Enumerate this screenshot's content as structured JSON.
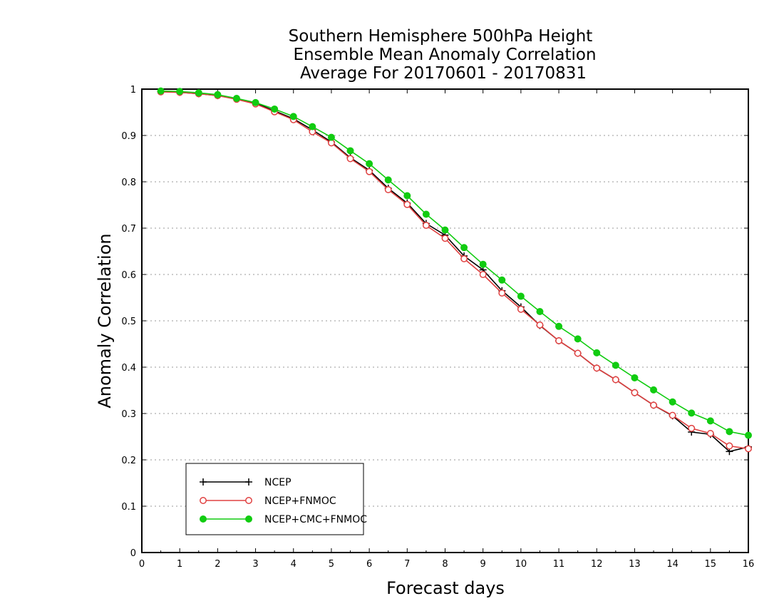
{
  "chart_data": {
    "type": "line",
    "title_lines": [
      "Southern Hemisphere 500hPa Height",
      "Ensemble Mean Anomaly Correlation",
      "Average For 20170601 - 20170831"
    ],
    "xlabel": "Forecast days",
    "ylabel": "Anomaly Correlation",
    "xlim": [
      0,
      16
    ],
    "ylim": [
      0,
      1
    ],
    "x_ticks": [
      "0",
      "1",
      "2",
      "3",
      "4",
      "5",
      "6",
      "7",
      "8",
      "9",
      "10",
      "11",
      "12",
      "13",
      "14",
      "15",
      "16"
    ],
    "y_ticks": [
      "0",
      "0.1",
      "0.2",
      "0.3",
      "0.4",
      "0.5",
      "0.6",
      "0.7",
      "0.8",
      "0.9",
      "1"
    ],
    "grid": "horizontal dotted",
    "legend_position": "bottom-left",
    "x": [
      0.5,
      1,
      1.5,
      2,
      2.5,
      3,
      3.5,
      4,
      4.5,
      5,
      5.5,
      6,
      6.5,
      7,
      7.5,
      8,
      8.5,
      9,
      9.5,
      10,
      10.5,
      11,
      11.5,
      12,
      12.5,
      13,
      13.5,
      14,
      14.5,
      15,
      15.5,
      16
    ],
    "series": [
      {
        "name": "NCEP",
        "color": "#000000",
        "marker": "plus",
        "values": [
          0.995,
          0.993,
          0.99,
          0.986,
          0.979,
          0.97,
          0.953,
          0.936,
          0.912,
          0.886,
          0.852,
          0.825,
          0.786,
          0.754,
          0.71,
          0.685,
          0.64,
          0.61,
          0.565,
          0.53,
          0.49,
          0.457,
          0.43,
          0.398,
          0.373,
          0.345,
          0.318,
          0.295,
          0.26,
          0.255,
          0.218,
          0.228
        ]
      },
      {
        "name": "NCEP+FNMOC",
        "color": "#e04040",
        "marker": "open-circle",
        "values": [
          0.994,
          0.993,
          0.99,
          0.986,
          0.978,
          0.968,
          0.951,
          0.934,
          0.908,
          0.884,
          0.85,
          0.822,
          0.783,
          0.751,
          0.706,
          0.678,
          0.634,
          0.6,
          0.56,
          0.525,
          0.491,
          0.457,
          0.43,
          0.398,
          0.373,
          0.345,
          0.318,
          0.296,
          0.268,
          0.257,
          0.23,
          0.224
        ]
      },
      {
        "name": "NCEP+CMC+FNMOC",
        "color": "#11cc11",
        "marker": "filled-circle",
        "values": [
          0.996,
          0.995,
          0.992,
          0.988,
          0.98,
          0.971,
          0.957,
          0.941,
          0.919,
          0.896,
          0.867,
          0.839,
          0.804,
          0.77,
          0.73,
          0.696,
          0.658,
          0.622,
          0.588,
          0.553,
          0.52,
          0.488,
          0.461,
          0.431,
          0.404,
          0.377,
          0.351,
          0.325,
          0.301,
          0.284,
          0.261,
          0.253
        ]
      }
    ]
  }
}
